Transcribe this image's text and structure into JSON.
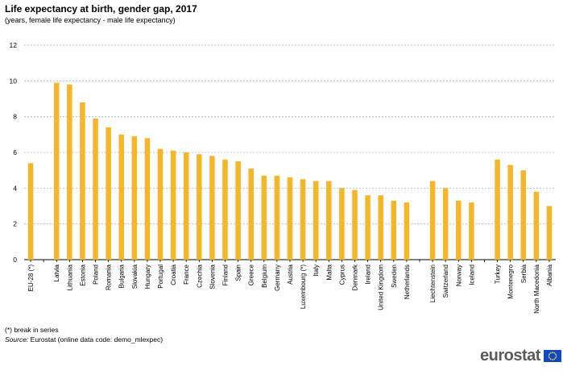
{
  "header": {
    "title": "Life expectancy at birth, gender gap, 2017",
    "subtitle": "(years, female life expectancy - male life expectancy)"
  },
  "footer": {
    "footnote": "(*) break in series",
    "source_label": "Source:",
    "source_text": " Eurostat (online data code: demo_mlexpec)"
  },
  "logo": {
    "text": "eurostat"
  },
  "chart_data": {
    "type": "bar",
    "title": "Life expectancy at birth, gender gap, 2017",
    "subtitle": "(years, female life expectancy - male life expectancy)",
    "xlabel": "",
    "ylabel": "",
    "ylim": [
      0,
      12
    ],
    "yticks": [
      0,
      2,
      4,
      6,
      8,
      10,
      12
    ],
    "grid": true,
    "bar_color": "#f5b627",
    "categories": [
      "EU-28 (*)",
      "",
      "Latvia",
      "Lithuania",
      "Estonia",
      "Poland",
      "Romania",
      "Bulgaria",
      "Slovakia",
      "Hungary",
      "Portugal",
      "Croatia",
      "France",
      "Czechia",
      "Slovenia",
      "Finland",
      "Spain",
      "Greece",
      "Belgium",
      "Germany",
      "Austria",
      "Luxembourg (*)",
      "Italy",
      "Malta",
      "Cyprus",
      "Denmark",
      "Ireland",
      "United Kingdom",
      "Sweden",
      "Netherlands",
      "",
      "Liechtenstein",
      "Switzerland",
      "Norway",
      "Iceland",
      "",
      "Turkey",
      "Montenegro",
      "Serbia",
      "North Macedonia",
      "Albania"
    ],
    "values": [
      5.4,
      null,
      9.9,
      9.8,
      8.8,
      7.9,
      7.4,
      7.0,
      6.9,
      6.8,
      6.2,
      6.1,
      6.0,
      5.9,
      5.8,
      5.6,
      5.5,
      5.1,
      4.7,
      4.7,
      4.6,
      4.5,
      4.4,
      4.4,
      4.0,
      3.9,
      3.6,
      3.6,
      3.3,
      3.2,
      null,
      4.4,
      4.0,
      3.3,
      3.2,
      null,
      5.6,
      5.3,
      5.0,
      3.8,
      3.0
    ]
  }
}
